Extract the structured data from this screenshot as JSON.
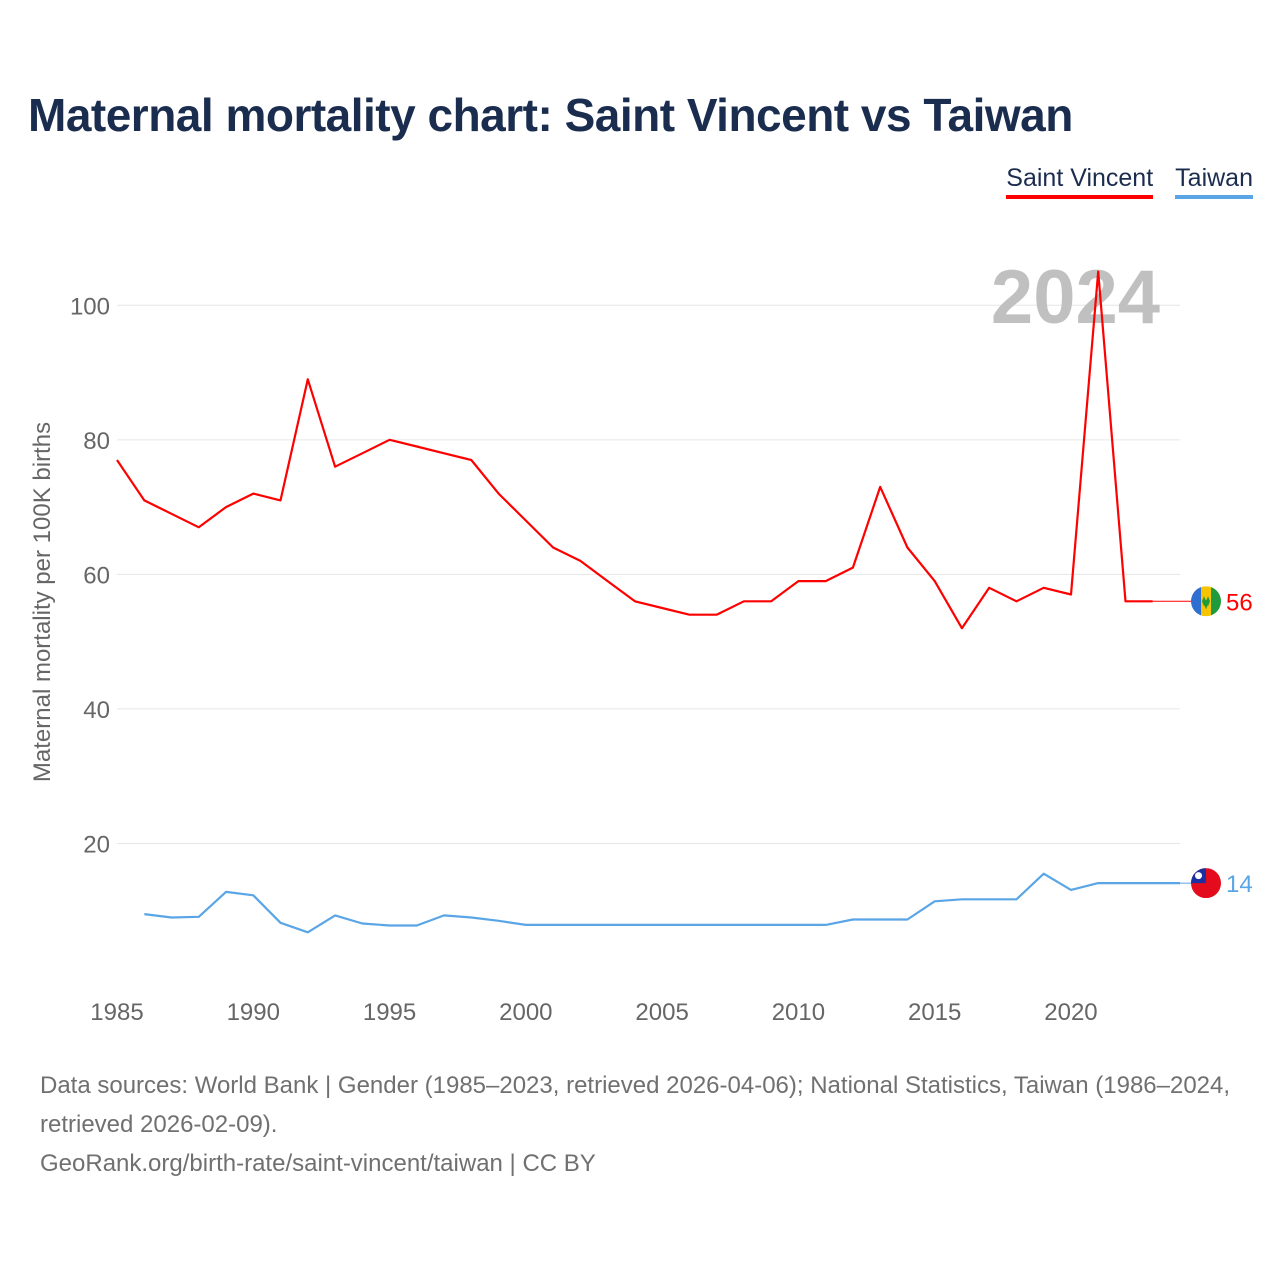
{
  "title": "Maternal mortality chart: Saint Vincent vs Taiwan",
  "legend": {
    "saint_vincent": "Saint Vincent",
    "taiwan": "Taiwan"
  },
  "footer": {
    "sources": "Data sources: World Bank | Gender (1985–2023, retrieved 2026-04-06); National Statistics, Taiwan (1986–2024, retrieved 2026-02-09).",
    "credit": "GeoRank.org/birth-rate/saint-vincent/taiwan | CC BY"
  },
  "colors": {
    "saint_vincent": "#ff0000",
    "taiwan": "#5aa5e6",
    "title": "#1b2d4f",
    "grid": "#e6e6e6",
    "axis_text": "#666666",
    "year_watermark": "#c0c0c0"
  },
  "chart_data": {
    "type": "line",
    "ylabel": "Maternal mortality per 100K births",
    "xlabel": "",
    "year_watermark": "2024",
    "xlim": [
      1985,
      2024
    ],
    "ylim": [
      0,
      110
    ],
    "x_ticks": [
      1985,
      1990,
      1995,
      2000,
      2005,
      2010,
      2015,
      2020
    ],
    "y_ticks": [
      20,
      40,
      60,
      80,
      100
    ],
    "series": [
      {
        "name": "Saint Vincent",
        "color": "#ff0000",
        "end_label": "56",
        "flag": "saint-vincent-flag-icon",
        "x": [
          1985,
          1986,
          1987,
          1988,
          1989,
          1990,
          1991,
          1992,
          1993,
          1994,
          1995,
          1996,
          1997,
          1998,
          1999,
          2000,
          2001,
          2002,
          2003,
          2004,
          2005,
          2006,
          2007,
          2008,
          2009,
          2010,
          2011,
          2012,
          2013,
          2014,
          2015,
          2016,
          2017,
          2018,
          2019,
          2020,
          2021,
          2022,
          2023
        ],
        "values": [
          77,
          71,
          69,
          67,
          70,
          72,
          71,
          89,
          76,
          78,
          80,
          79,
          78,
          77,
          72,
          68,
          64,
          62,
          59,
          56,
          55,
          54,
          54,
          56,
          56,
          59,
          59,
          61,
          73,
          64,
          59,
          52,
          58,
          56,
          58,
          57,
          105,
          56,
          56
        ]
      },
      {
        "name": "Taiwan",
        "color": "#5aa5e6",
        "end_label": "14",
        "flag": "taiwan-flag-icon",
        "x": [
          1986,
          1987,
          1988,
          1989,
          1990,
          1991,
          1992,
          1993,
          1994,
          1995,
          1996,
          1997,
          1998,
          1999,
          2000,
          2001,
          2002,
          2003,
          2004,
          2005,
          2006,
          2007,
          2008,
          2009,
          2010,
          2011,
          2012,
          2013,
          2014,
          2015,
          2016,
          2017,
          2018,
          2019,
          2020,
          2021,
          2022,
          2023,
          2024
        ],
        "values": [
          9.5,
          9.0,
          9.1,
          12.8,
          12.3,
          8.2,
          6.8,
          9.3,
          8.1,
          7.8,
          7.8,
          9.3,
          9.0,
          8.5,
          7.9,
          7.9,
          7.9,
          7.9,
          7.9,
          7.9,
          7.9,
          7.9,
          7.9,
          7.9,
          7.9,
          7.9,
          8.7,
          8.7,
          8.7,
          11.4,
          11.7,
          11.7,
          11.7,
          15.5,
          13.1,
          14.1,
          14.1,
          14.1,
          14.1
        ]
      }
    ]
  }
}
